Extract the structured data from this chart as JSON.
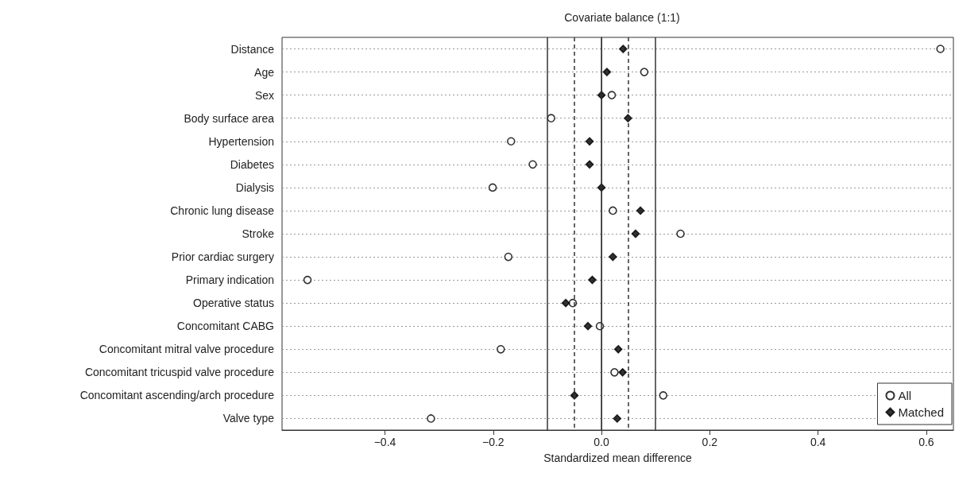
{
  "chart_data": {
    "type": "scatter",
    "title": "Covariate balance (1:1)",
    "xlabel": "Standardized mean difference",
    "categories": [
      "Distance",
      "Age",
      "Sex",
      "Body surface area",
      "Hypertension",
      "Diabetes",
      "Dialysis",
      "Chronic lung disease",
      "Stroke",
      "Prior cardiac surgery",
      "Primary indication",
      "Operative status",
      "Concomitant CABG",
      "Concomitant mitral valve procedure",
      "Concomitant tricuspid valve procedure",
      "Concomitant ascending/arch procedure",
      "Valve type"
    ],
    "orientation": "horizontal",
    "series": [
      {
        "name": "All",
        "color": "#ffffff",
        "marker": "circle",
        "values": [
          0.626,
          0.079,
          0.019,
          -0.093,
          -0.167,
          -0.127,
          -0.201,
          0.021,
          0.146,
          -0.172,
          -0.543,
          -0.053,
          -0.003,
          -0.186,
          0.024,
          0.114,
          -0.315
        ]
      },
      {
        "name": "Matched",
        "color": "#000000",
        "marker": "diamond",
        "values": [
          0.04,
          0.01,
          0.0,
          0.049,
          -0.022,
          -0.022,
          0.0,
          0.072,
          0.063,
          0.021,
          -0.017,
          -0.066,
          -0.025,
          0.031,
          0.039,
          -0.05,
          0.029
        ]
      }
    ],
    "xlim": [
      -0.59,
      0.65
    ],
    "xticks": [
      {
        "value": -0.4,
        "label": "−0.4"
      },
      {
        "value": -0.2,
        "label": "−0.2"
      },
      {
        "value": 0,
        "label": "0.0"
      },
      0.2,
      0.4,
      0.6
    ],
    "ref_lines": [
      {
        "axis": "x",
        "value": -0.1,
        "line_style": "solid"
      },
      {
        "axis": "x",
        "value": -0.05,
        "line_style": "dashed"
      },
      {
        "axis": "x",
        "value": 0,
        "line_style": "solid"
      },
      {
        "axis": "x",
        "value": 0.05,
        "line_style": "dashed"
      },
      {
        "axis": "x",
        "value": 0.1,
        "line_style": "solid"
      }
    ],
    "grid": "y",
    "legend": "bottom right"
  }
}
